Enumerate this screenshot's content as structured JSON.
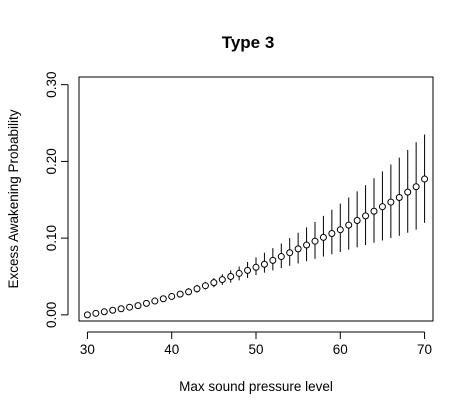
{
  "chart_data": {
    "type": "scatter",
    "title": "Type 3",
    "xlabel": "Max sound pressure level",
    "ylabel": "Excess Awakening Probability",
    "xlim": [
      29,
      71
    ],
    "ylim": [
      -0.008,
      0.31
    ],
    "x_ticks": [
      30,
      40,
      50,
      60,
      70
    ],
    "y_ticks": [
      0.0,
      0.1,
      0.2,
      0.3
    ],
    "x_tick_labels": [
      "30",
      "40",
      "50",
      "60",
      "70"
    ],
    "y_tick_labels": [
      "0.00",
      "0.10",
      "0.20",
      "0.30"
    ],
    "marker": "open-circle",
    "grid": false,
    "series": [
      {
        "x": [
          30,
          31,
          32,
          33,
          34,
          35,
          36,
          37,
          38,
          39,
          40,
          41,
          42,
          43,
          44,
          45,
          46,
          47,
          48,
          49,
          50,
          51,
          52,
          53,
          54,
          55,
          56,
          57,
          58,
          59,
          60,
          61,
          62,
          63,
          64,
          65,
          66,
          67,
          68,
          69,
          70
        ],
        "y": [
          0.0,
          0.002,
          0.004,
          0.006,
          0.008,
          0.01,
          0.012,
          0.015,
          0.018,
          0.021,
          0.024,
          0.027,
          0.03,
          0.034,
          0.038,
          0.042,
          0.046,
          0.05,
          0.054,
          0.058,
          0.062,
          0.066,
          0.071,
          0.076,
          0.081,
          0.086,
          0.091,
          0.096,
          0.101,
          0.106,
          0.111,
          0.117,
          0.123,
          0.129,
          0.135,
          0.141,
          0.147,
          0.153,
          0.16,
          0.167,
          0.177
        ],
        "lower": [
          0.0,
          0.002,
          0.003,
          0.005,
          0.007,
          0.009,
          0.011,
          0.013,
          0.016,
          0.018,
          0.021,
          0.024,
          0.026,
          0.029,
          0.033,
          0.036,
          0.039,
          0.042,
          0.045,
          0.048,
          0.052,
          0.055,
          0.058,
          0.061,
          0.064,
          0.067,
          0.07,
          0.073,
          0.076,
          0.079,
          0.082,
          0.085,
          0.088,
          0.091,
          0.094,
          0.097,
          0.1,
          0.103,
          0.107,
          0.111,
          0.12
        ],
        "upper": [
          0.001,
          0.003,
          0.005,
          0.007,
          0.009,
          0.011,
          0.013,
          0.016,
          0.019,
          0.023,
          0.027,
          0.031,
          0.035,
          0.039,
          0.043,
          0.048,
          0.053,
          0.058,
          0.063,
          0.069,
          0.075,
          0.081,
          0.087,
          0.093,
          0.1,
          0.107,
          0.114,
          0.121,
          0.129,
          0.137,
          0.145,
          0.153,
          0.161,
          0.169,
          0.178,
          0.187,
          0.196,
          0.205,
          0.215,
          0.225,
          0.235
        ]
      }
    ]
  }
}
